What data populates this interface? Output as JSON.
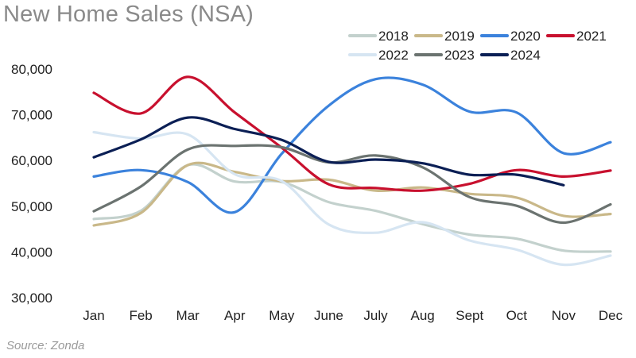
{
  "title": "New Home Sales (NSA)",
  "source": "Source: Zonda",
  "chart_data": {
    "type": "line",
    "title": "New Home Sales (NSA)",
    "xlabel": "",
    "ylabel": "",
    "categories": [
      "Jan",
      "Feb",
      "Mar",
      "Apr",
      "May",
      "June",
      "July",
      "Aug",
      "Sept",
      "Oct",
      "Nov",
      "Dec"
    ],
    "ylim": [
      30000,
      80000
    ],
    "yticks": [
      30000,
      40000,
      50000,
      60000,
      70000,
      80000
    ],
    "ytick_labels": [
      "30,000",
      "40,000",
      "50,000",
      "60,000",
      "70,000",
      "80,000"
    ],
    "legend_position": "top-right",
    "grid": false,
    "series": [
      {
        "name": "2018",
        "color": "#c3d1cd",
        "values": [
          47200,
          49000,
          59000,
          55400,
          55300,
          50900,
          49000,
          46100,
          43800,
          42900,
          40300,
          40100
        ]
      },
      {
        "name": "2019",
        "color": "#c9b889",
        "values": [
          45800,
          48500,
          59000,
          57500,
          55500,
          55800,
          53400,
          54100,
          52700,
          51900,
          47900,
          48300
        ]
      },
      {
        "name": "2020",
        "color": "#3b82dc",
        "values": [
          56500,
          57900,
          55300,
          48700,
          61500,
          72000,
          77800,
          76600,
          70700,
          70500,
          61600,
          64000
        ]
      },
      {
        "name": "2021",
        "color": "#c8102e",
        "values": [
          74800,
          70300,
          78300,
          70500,
          62800,
          54800,
          54000,
          53400,
          54900,
          57900,
          56500,
          57800
        ]
      },
      {
        "name": "2022",
        "color": "#d6e5f2",
        "values": [
          66200,
          64800,
          65700,
          57000,
          55500,
          46000,
          44200,
          46500,
          42500,
          40500,
          37200,
          39200
        ]
      },
      {
        "name": "2023",
        "color": "#6b7370",
        "values": [
          48900,
          54300,
          62400,
          63200,
          62900,
          59600,
          61100,
          58500,
          52000,
          50100,
          46400,
          50400
        ]
      },
      {
        "name": "2024",
        "color": "#0b1f55",
        "values": [
          60700,
          64600,
          69400,
          66900,
          64500,
          59700,
          60200,
          59400,
          56900,
          56900,
          54600,
          null
        ]
      }
    ]
  }
}
